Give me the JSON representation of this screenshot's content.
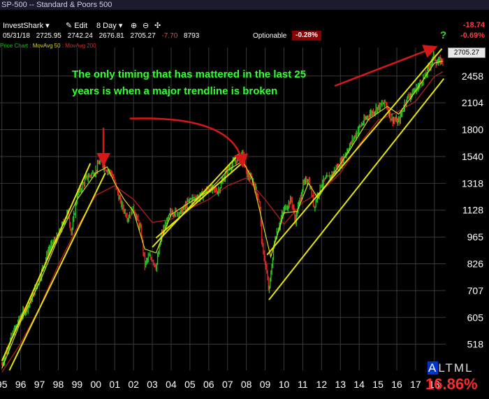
{
  "window": {
    "title": "SP-500 -- Standard & Poors 500"
  },
  "toolbar": {
    "brand": "InvestShark",
    "edit": "Edit",
    "period": "8 Day"
  },
  "quote": {
    "date": "05/31/18",
    "open": "2725.95",
    "high": "2742.24",
    "low": "2676.81",
    "close": "2705.27",
    "change": "-7.70",
    "volume": "8793",
    "optionable": "Optionable",
    "pct_change": "-0.28%",
    "right_change": "-18.74",
    "right_pct": "-0.69%"
  },
  "legend": {
    "price": "Price Chart",
    "ma50": "MovAvg 50",
    "ma200": "MovAvg 200"
  },
  "annotation": {
    "text": "The only timing that has mattered in the last 25 years is when a major trendline is broken",
    "qmark": "?"
  },
  "footer": {
    "altml_a": "A",
    "altml_rest": "LTML",
    "big_pct": "16.86%"
  },
  "colors": {
    "up": "#22c422",
    "down": "#e02424",
    "ma50": "#d8d820",
    "ma200": "#b81c1c",
    "trend": "#e6e600",
    "arrow": "#d81818",
    "grid": "#3a3a3a"
  },
  "chart_data": {
    "type": "line",
    "title": "",
    "xlabel": "",
    "ylabel": "",
    "scale": "log",
    "last_value": "2705.27",
    "y_ticks": [
      518,
      605,
      707,
      826,
      965,
      1128,
      1318,
      1540,
      1800,
      2104,
      2458
    ],
    "x_ticks": [
      "95",
      "96",
      "97",
      "98",
      "99",
      "00",
      "01",
      "02",
      "03",
      "04",
      "05",
      "06",
      "07",
      "08",
      "09",
      "10",
      "11",
      "12",
      "13",
      "14",
      "15",
      "16",
      "17",
      "18"
    ],
    "ylim": [
      445,
      2900
    ],
    "xlim": [
      1994.9,
      2018.6
    ],
    "series": [
      {
        "role": "price",
        "points": [
          [
            1995.0,
            460
          ],
          [
            1995.5,
            540
          ],
          [
            1996.0,
            610
          ],
          [
            1996.5,
            660
          ],
          [
            1997.0,
            760
          ],
          [
            1997.5,
            900
          ],
          [
            1998.0,
            970
          ],
          [
            1998.5,
            1120
          ],
          [
            1998.7,
            990
          ],
          [
            1999.0,
            1230
          ],
          [
            1999.5,
            1360
          ],
          [
            2000.0,
            1420
          ],
          [
            2000.2,
            1500
          ],
          [
            2000.5,
            1440
          ],
          [
            2000.8,
            1400
          ],
          [
            2001.0,
            1330
          ],
          [
            2001.3,
            1180
          ],
          [
            2001.7,
            1080
          ],
          [
            2002.0,
            1140
          ],
          [
            2002.4,
            1000
          ],
          [
            2002.6,
            820
          ],
          [
            2002.8,
            860
          ],
          [
            2003.0,
            850
          ],
          [
            2003.2,
            810
          ],
          [
            2003.5,
            980
          ],
          [
            2004.0,
            1120
          ],
          [
            2004.5,
            1110
          ],
          [
            2005.0,
            1200
          ],
          [
            2005.5,
            1220
          ],
          [
            2006.0,
            1280
          ],
          [
            2006.5,
            1260
          ],
          [
            2007.0,
            1430
          ],
          [
            2007.5,
            1520
          ],
          [
            2007.8,
            1560
          ],
          [
            2008.0,
            1400
          ],
          [
            2008.4,
            1320
          ],
          [
            2008.7,
            1180
          ],
          [
            2008.85,
            900
          ],
          [
            2009.0,
            840
          ],
          [
            2009.2,
            700
          ],
          [
            2009.5,
            950
          ],
          [
            2010.0,
            1130
          ],
          [
            2010.4,
            1200
          ],
          [
            2010.6,
            1060
          ],
          [
            2011.0,
            1300
          ],
          [
            2011.3,
            1360
          ],
          [
            2011.6,
            1150
          ],
          [
            2012.0,
            1320
          ],
          [
            2012.5,
            1380
          ],
          [
            2013.0,
            1480
          ],
          [
            2013.5,
            1640
          ],
          [
            2014.0,
            1820
          ],
          [
            2014.5,
            1960
          ],
          [
            2015.0,
            2050
          ],
          [
            2015.4,
            2110
          ],
          [
            2015.7,
            1920
          ],
          [
            2016.1,
            1880
          ],
          [
            2016.5,
            2150
          ],
          [
            2017.0,
            2270
          ],
          [
            2017.5,
            2450
          ],
          [
            2018.0,
            2780
          ],
          [
            2018.1,
            2640
          ],
          [
            2018.4,
            2700
          ],
          [
            2018.45,
            2705
          ]
        ]
      },
      {
        "role": "ma50",
        "points": [
          [
            1995.0,
            450
          ],
          [
            1996.0,
            590
          ],
          [
            1997.0,
            740
          ],
          [
            1998.0,
            960
          ],
          [
            1999.0,
            1200
          ],
          [
            2000.0,
            1400
          ],
          [
            2000.6,
            1450
          ],
          [
            2001.0,
            1320
          ],
          [
            2001.5,
            1200
          ],
          [
            2002.0,
            1120
          ],
          [
            2002.6,
            900
          ],
          [
            2003.2,
            880
          ],
          [
            2004.0,
            1100
          ],
          [
            2005.0,
            1180
          ],
          [
            2006.0,
            1260
          ],
          [
            2007.0,
            1420
          ],
          [
            2007.8,
            1500
          ],
          [
            2008.3,
            1360
          ],
          [
            2008.8,
            1080
          ],
          [
            2009.3,
            860
          ],
          [
            2010.0,
            1110
          ],
          [
            2010.7,
            1120
          ],
          [
            2011.3,
            1320
          ],
          [
            2011.8,
            1210
          ],
          [
            2012.5,
            1360
          ],
          [
            2013.5,
            1600
          ],
          [
            2014.5,
            1910
          ],
          [
            2015.5,
            2060
          ],
          [
            2016.1,
            1970
          ],
          [
            2017.0,
            2250
          ],
          [
            2018.0,
            2650
          ],
          [
            2018.45,
            2680
          ]
        ]
      },
      {
        "role": "ma200",
        "points": [
          [
            1995.0,
            440
          ],
          [
            1996.0,
            520
          ],
          [
            1997.0,
            640
          ],
          [
            1998.0,
            820
          ],
          [
            1999.0,
            1020
          ],
          [
            2000.0,
            1230
          ],
          [
            2001.0,
            1300
          ],
          [
            2002.0,
            1200
          ],
          [
            2003.0,
            1050
          ],
          [
            2004.0,
            1070
          ],
          [
            2005.0,
            1140
          ],
          [
            2006.0,
            1200
          ],
          [
            2007.0,
            1300
          ],
          [
            2008.0,
            1360
          ],
          [
            2009.0,
            1200
          ],
          [
            2010.0,
            1040
          ],
          [
            2011.0,
            1180
          ],
          [
            2012.0,
            1260
          ],
          [
            2013.0,
            1400
          ],
          [
            2014.0,
            1650
          ],
          [
            2015.0,
            1900
          ],
          [
            2016.0,
            1990
          ],
          [
            2017.0,
            2120
          ],
          [
            2018.0,
            2450
          ],
          [
            2018.45,
            2520
          ]
        ]
      }
    ],
    "trendlines": [
      [
        [
          1995.0,
          470
        ],
        [
          1999.7,
          1480
        ]
      ],
      [
        [
          1995.4,
          445
        ],
        [
          2000.5,
          1400
        ]
      ],
      [
        [
          2003.0,
          910
        ],
        [
          2007.6,
          1560
        ]
      ],
      [
        [
          2003.2,
          960
        ],
        [
          2007.9,
          1500
        ]
      ],
      [
        [
          2009.1,
          870
        ],
        [
          2018.4,
          2880
        ]
      ],
      [
        [
          2009.2,
          670
        ],
        [
          2018.5,
          2420
        ]
      ]
    ],
    "arrows": [
      [
        [
          2000.4,
          1820
        ],
        [
          2000.4,
          1480
        ]
      ],
      [
        [
          2001.8,
          1920
        ],
        [
          2007.8,
          1470
        ]
      ],
      [
        [
          2012.7,
          2320
        ],
        [
          2018.0,
          2900
        ]
      ]
    ]
  }
}
